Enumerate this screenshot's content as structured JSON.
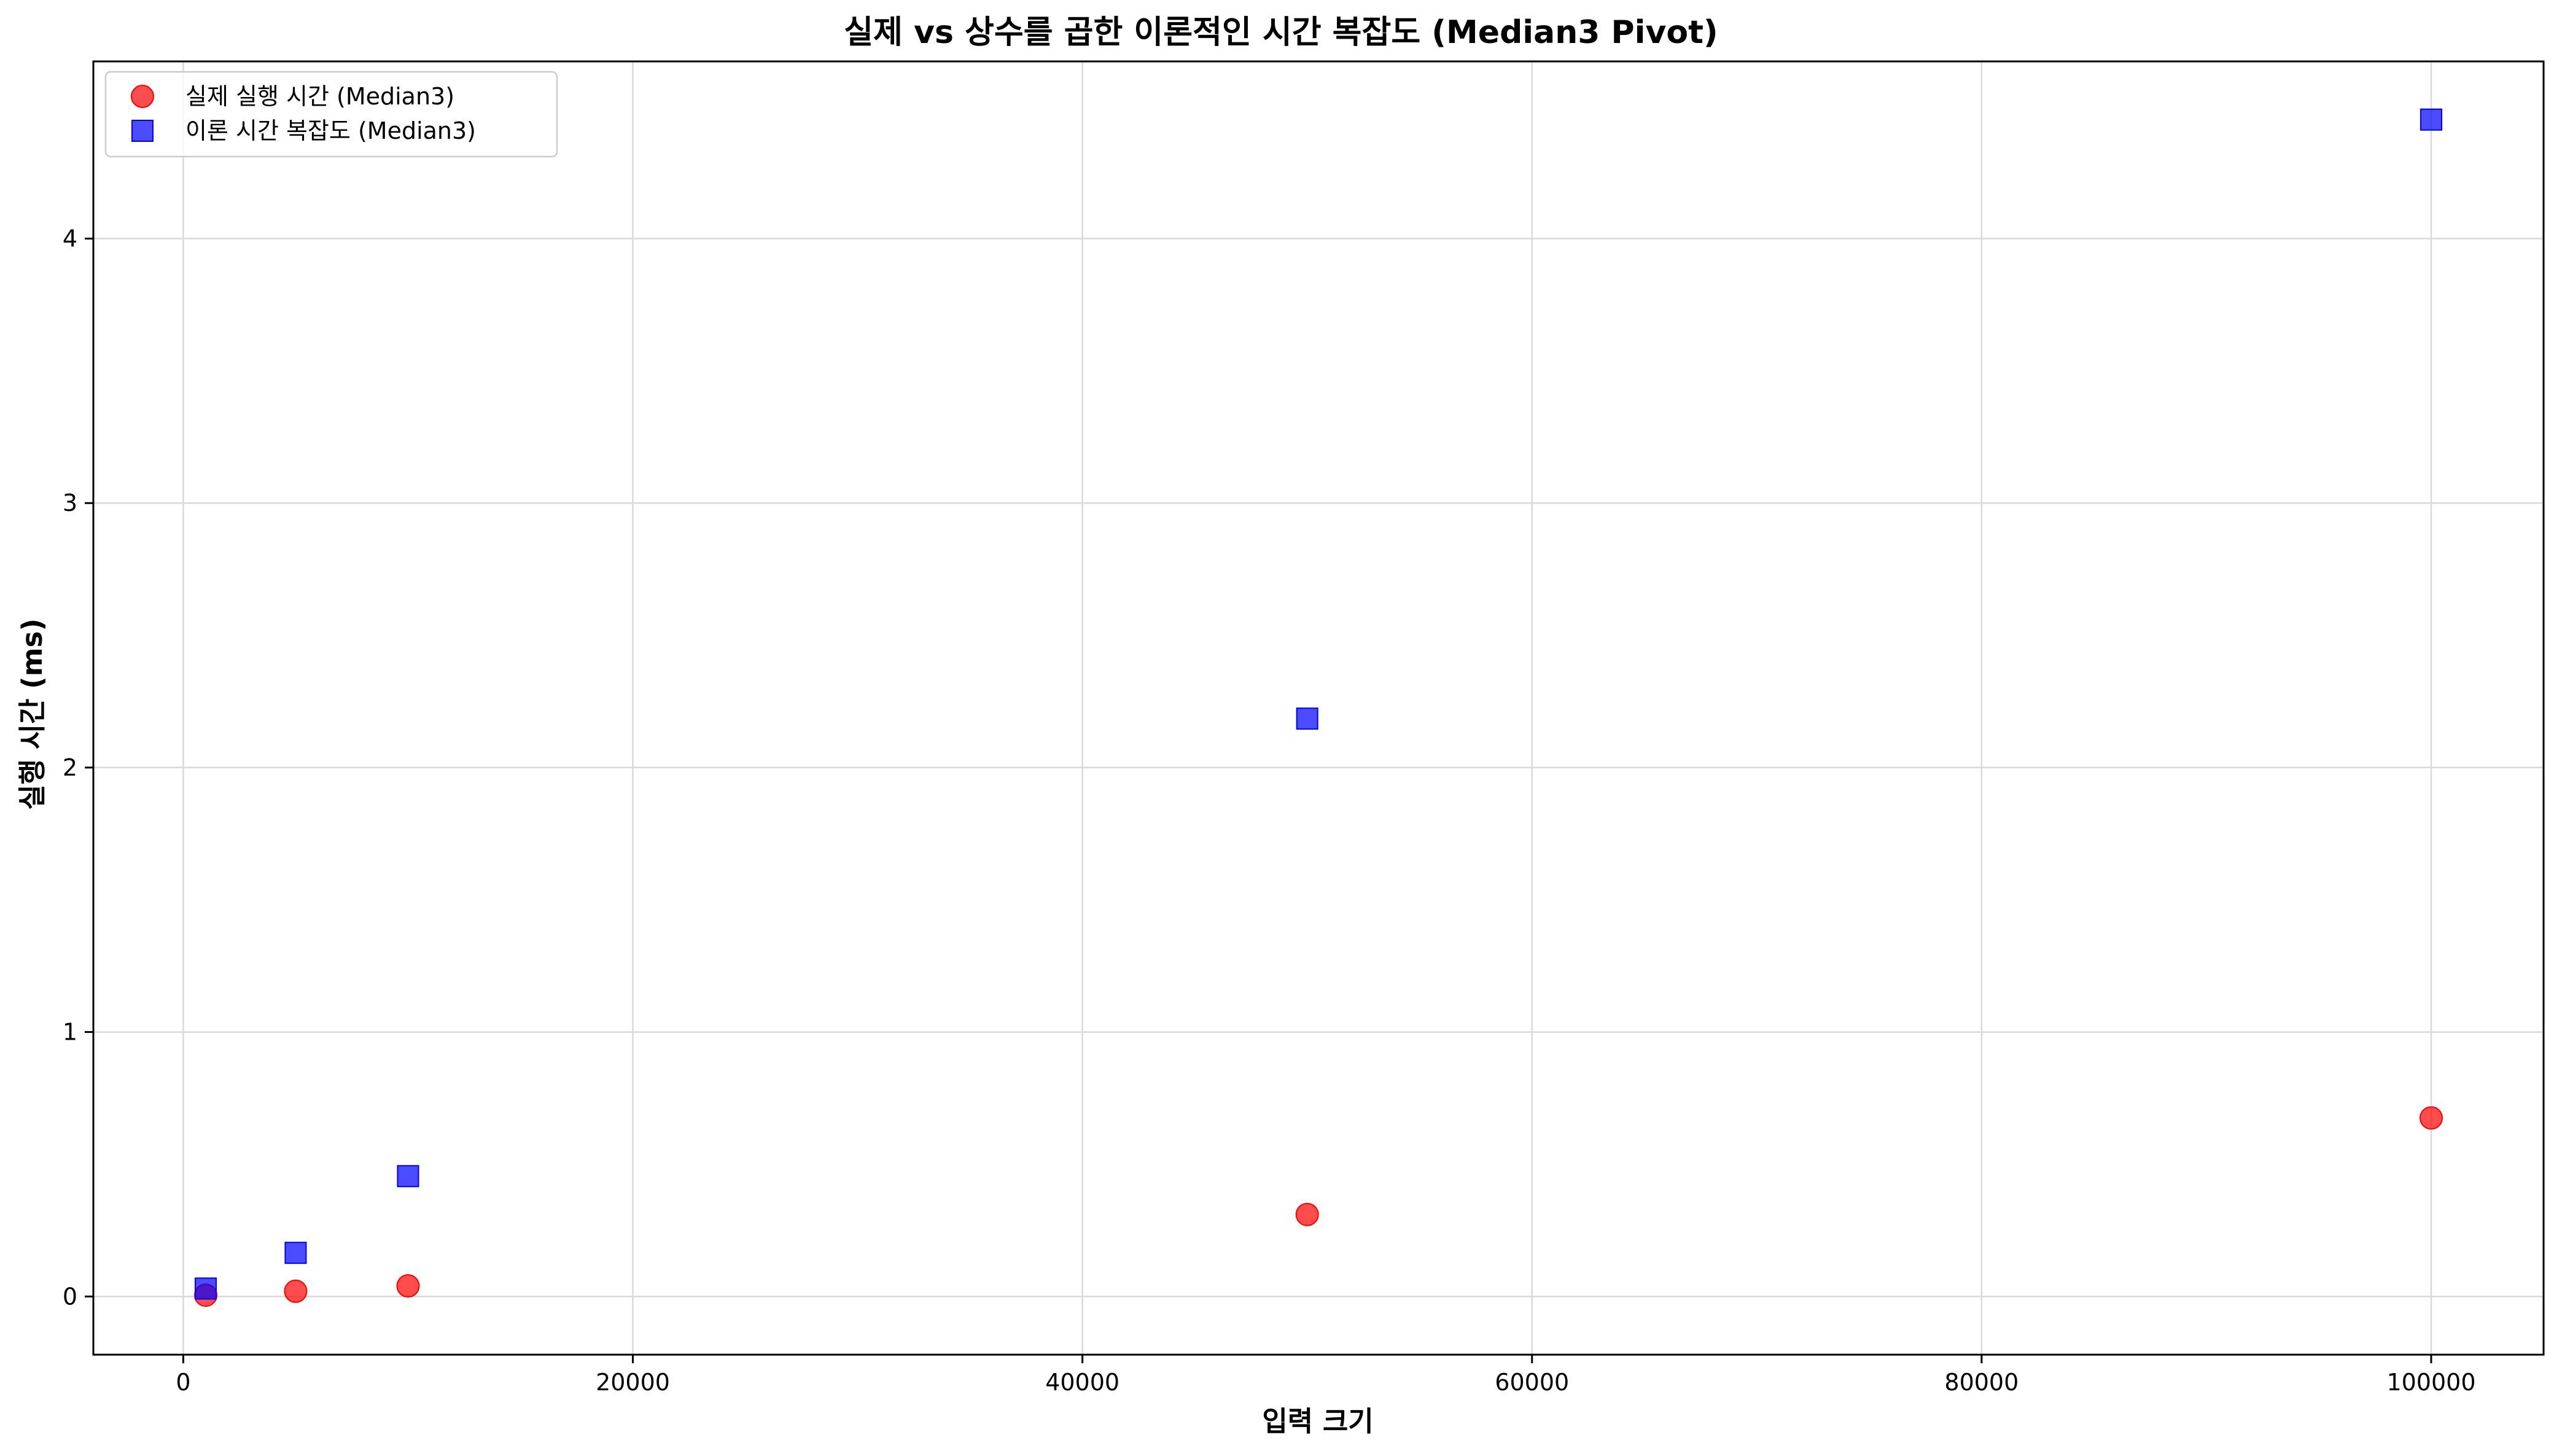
{
  "chart_data": {
    "type": "scatter",
    "title": "실제 vs 상수를 곱한 이론적인 시간 복잡도 (Median3 Pivot)",
    "xlabel": "입력 크기",
    "ylabel": "실행 시간 (ms)",
    "xlim": [
      -4000,
      105000
    ],
    "ylim": [
      -0.22,
      4.67
    ],
    "xticks": [
      0,
      20000,
      40000,
      60000,
      80000,
      100000
    ],
    "yticks": [
      0,
      1,
      2,
      3,
      4
    ],
    "grid": true,
    "legend_position": "top-left",
    "series": [
      {
        "name": "실제 실행 시간 (Median3)",
        "marker": "circle",
        "color": "#ff0000",
        "x": [
          1000,
          5000,
          10000,
          50000,
          100000
        ],
        "y": [
          0.005,
          0.02,
          0.04,
          0.31,
          0.675
        ]
      },
      {
        "name": "이론 시간 복잡도 (Median3)",
        "marker": "square",
        "color": "#0000ff",
        "x": [
          1000,
          5000,
          10000,
          50000,
          100000
        ],
        "y": [
          0.03,
          0.165,
          0.455,
          2.185,
          4.45
        ]
      }
    ]
  }
}
